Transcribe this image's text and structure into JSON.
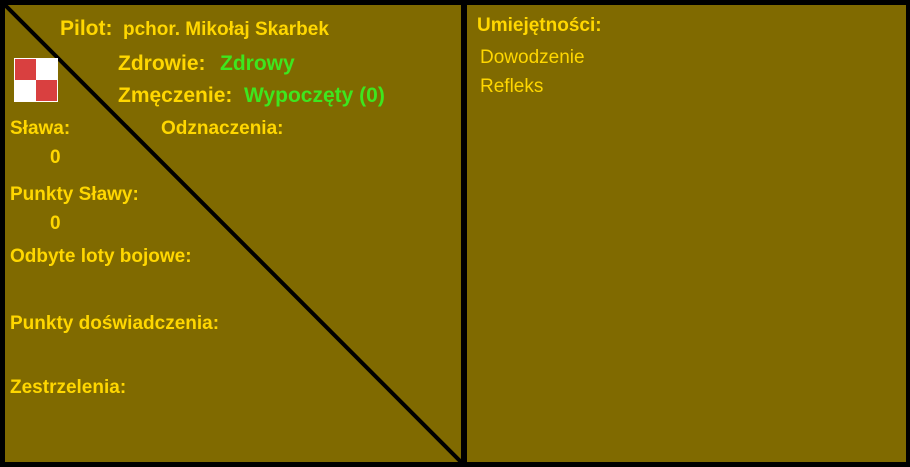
{
  "pilot": {
    "label": "Pilot:",
    "name": "pchor. Mikołaj Skarbek"
  },
  "health": {
    "label": "Zdrowie:",
    "value": "Zdrowy"
  },
  "fatigue": {
    "label": "Zmęczenie:",
    "value": "Wypoczęty (0)"
  },
  "fame": {
    "label": "Sława:",
    "value": "0"
  },
  "decorations": {
    "label": "Odznaczenia:"
  },
  "fame_points": {
    "label": "Punkty Sławy:",
    "value": "0"
  },
  "missions": {
    "label": "Odbyte loty bojowe:"
  },
  "experience": {
    "label": "Punkty doświadczenia:"
  },
  "kills": {
    "label": "Zestrzelenia:"
  },
  "skills": {
    "label": "Umiejętności:",
    "items": [
      "Dowodzenie",
      "Refleks"
    ]
  },
  "colors": {
    "background": "#806a00",
    "text": "#ffd700",
    "status": "#3ee61e",
    "insignia_red": "#d94040"
  },
  "icons": {
    "insignia": "polish-checkerboard-icon"
  }
}
